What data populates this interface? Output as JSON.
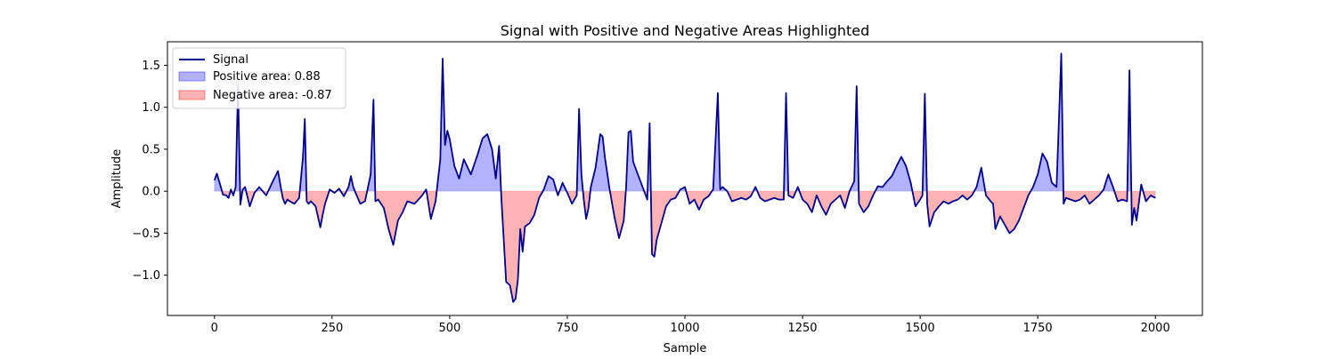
{
  "chart_data": {
    "type": "area",
    "title": "Signal with Positive and Negative Areas Highlighted",
    "xlabel": "Sample",
    "ylabel": "Amplitude",
    "xlim": [
      -100,
      2100
    ],
    "ylim": [
      -1.48,
      1.78
    ],
    "xticks": [
      0,
      250,
      500,
      750,
      1000,
      1250,
      1500,
      1750,
      2000
    ],
    "xtick_labels": [
      "0",
      "250",
      "500",
      "750",
      "1000",
      "1250",
      "1500",
      "1750",
      "2000"
    ],
    "yticks": [
      -1.0,
      -0.5,
      0.0,
      0.5,
      1.0,
      1.5
    ],
    "ytick_labels": [
      "−1.0",
      "−0.5",
      "0.0",
      "0.5",
      "1.0",
      "1.5"
    ],
    "grid": false,
    "legend": {
      "position": "top-left",
      "entries": [
        {
          "label": "Signal",
          "kind": "line",
          "color": "#00008b"
        },
        {
          "label": "Positive area: 0.88",
          "kind": "patch",
          "color": "#0000ff"
        },
        {
          "label": "Negative area: -0.87",
          "kind": "patch",
          "color": "#ff0000"
        }
      ]
    },
    "colors": {
      "signal": "#00008b",
      "positive_fill": "#0000ff",
      "negative_fill": "#ff0000",
      "fill_opacity": 0.3
    },
    "series": [
      {
        "name": "Signal",
        "x": [
          0,
          5,
          12,
          18,
          25,
          30,
          35,
          40,
          45,
          50,
          55,
          60,
          65,
          75,
          85,
          95,
          110,
          125,
          135,
          145,
          150,
          155,
          160,
          170,
          180,
          188,
          192,
          196,
          200,
          205,
          215,
          225,
          230,
          235,
          245,
          255,
          265,
          275,
          285,
          290,
          295,
          300,
          310,
          320,
          332,
          338,
          342,
          348,
          360,
          370,
          380,
          390,
          400,
          410,
          425,
          440,
          450,
          460,
          470,
          480,
          485,
          490,
          495,
          500,
          510,
          520,
          530,
          545,
          560,
          570,
          580,
          590,
          598,
          605,
          610,
          620,
          628,
          635,
          640,
          645,
          650,
          655,
          660,
          670,
          680,
          690,
          700,
          710,
          720,
          730,
          740,
          750,
          760,
          770,
          775,
          780,
          785,
          790,
          795,
          800,
          810,
          820,
          825,
          830,
          840,
          850,
          860,
          870,
          875,
          880,
          885,
          890,
          900,
          910,
          920,
          925,
          930,
          935,
          940,
          950,
          960,
          970,
          980,
          990,
          1000,
          1010,
          1020,
          1030,
          1040,
          1050,
          1060,
          1070,
          1075,
          1080,
          1090,
          1100,
          1110,
          1120,
          1130,
          1140,
          1150,
          1160,
          1170,
          1180,
          1190,
          1200,
          1210,
          1215,
          1220,
          1230,
          1240,
          1250,
          1260,
          1270,
          1280,
          1290,
          1300,
          1310,
          1320,
          1330,
          1340,
          1350,
          1360,
          1365,
          1370,
          1380,
          1390,
          1400,
          1410,
          1420,
          1430,
          1440,
          1450,
          1460,
          1470,
          1480,
          1490,
          1500,
          1505,
          1510,
          1515,
          1520,
          1530,
          1540,
          1550,
          1560,
          1570,
          1580,
          1590,
          1600,
          1610,
          1620,
          1630,
          1640,
          1650,
          1655,
          1660,
          1670,
          1680,
          1690,
          1700,
          1710,
          1720,
          1730,
          1740,
          1750,
          1760,
          1770,
          1780,
          1790,
          1800,
          1805,
          1810,
          1820,
          1830,
          1840,
          1850,
          1860,
          1870,
          1880,
          1890,
          1900,
          1910,
          1920,
          1930,
          1940,
          1945,
          1950,
          1955,
          1960,
          1970,
          1980,
          1990,
          2000
        ],
        "values": [
          0.13,
          0.21,
          0.08,
          -0.04,
          -0.05,
          -0.08,
          0.02,
          -0.05,
          0.05,
          1.26,
          -0.16,
          0.02,
          0.05,
          -0.18,
          -0.02,
          0.05,
          -0.05,
          0.13,
          0.24,
          -0.08,
          -0.15,
          -0.1,
          -0.12,
          -0.15,
          -0.08,
          0.4,
          0.86,
          -0.12,
          -0.15,
          -0.12,
          -0.18,
          -0.43,
          -0.28,
          -0.15,
          0.02,
          -0.02,
          0.03,
          -0.06,
          0.05,
          0.18,
          0.05,
          -0.02,
          -0.15,
          -0.12,
          0.2,
          1.09,
          -0.12,
          -0.1,
          -0.2,
          -0.45,
          -0.64,
          -0.35,
          -0.25,
          -0.12,
          -0.15,
          -0.06,
          0.02,
          -0.33,
          -0.12,
          0.38,
          1.58,
          0.55,
          0.72,
          0.62,
          0.3,
          0.15,
          0.38,
          0.2,
          0.45,
          0.63,
          0.68,
          0.5,
          0.15,
          0.54,
          -0.1,
          -1.08,
          -1.12,
          -1.32,
          -1.28,
          -1.05,
          -0.45,
          -0.72,
          -0.42,
          -0.38,
          -0.28,
          -0.08,
          0.02,
          0.18,
          0.14,
          -0.05,
          0.1,
          -0.02,
          -0.15,
          -0.05,
          0.98,
          0.2,
          -0.1,
          -0.33,
          -0.2,
          0.05,
          0.28,
          0.68,
          0.65,
          0.4,
          0.02,
          -0.3,
          -0.56,
          -0.35,
          0.05,
          0.7,
          0.72,
          0.35,
          0.2,
          0.05,
          -0.1,
          0.81,
          -0.75,
          -0.78,
          -0.58,
          -0.38,
          -0.18,
          -0.1,
          -0.08,
          0.02,
          0.05,
          -0.15,
          -0.1,
          -0.22,
          -0.1,
          -0.06,
          0.02,
          1.17,
          0.02,
          0.05,
          0.0,
          -0.12,
          -0.1,
          -0.08,
          -0.1,
          -0.06,
          0.05,
          -0.08,
          -0.12,
          -0.1,
          -0.08,
          -0.1,
          -0.1,
          1.17,
          -0.05,
          -0.08,
          0.05,
          -0.1,
          -0.15,
          -0.25,
          -0.05,
          -0.18,
          -0.28,
          -0.15,
          -0.1,
          -0.05,
          -0.2,
          0.0,
          0.12,
          1.25,
          -0.15,
          -0.25,
          -0.18,
          -0.05,
          0.06,
          0.05,
          0.12,
          0.18,
          0.3,
          0.41,
          0.3,
          0.1,
          -0.18,
          -0.1,
          -0.05,
          1.16,
          -0.15,
          -0.42,
          -0.25,
          -0.18,
          -0.12,
          -0.15,
          -0.12,
          -0.1,
          -0.05,
          -0.1,
          -0.05,
          0.05,
          0.28,
          -0.05,
          -0.12,
          -0.15,
          -0.45,
          -0.3,
          -0.4,
          -0.5,
          -0.45,
          -0.35,
          -0.2,
          -0.05,
          0.05,
          0.2,
          0.45,
          0.35,
          0.1,
          0.05,
          1.64,
          -0.15,
          -0.08,
          -0.1,
          -0.12,
          -0.1,
          -0.05,
          -0.15,
          -0.1,
          -0.05,
          0.02,
          0.2,
          0.05,
          -0.12,
          -0.1,
          -0.12,
          1.44,
          -0.4,
          -0.2,
          -0.35,
          0.08,
          -0.12,
          -0.05,
          -0.08
        ]
      }
    ]
  }
}
